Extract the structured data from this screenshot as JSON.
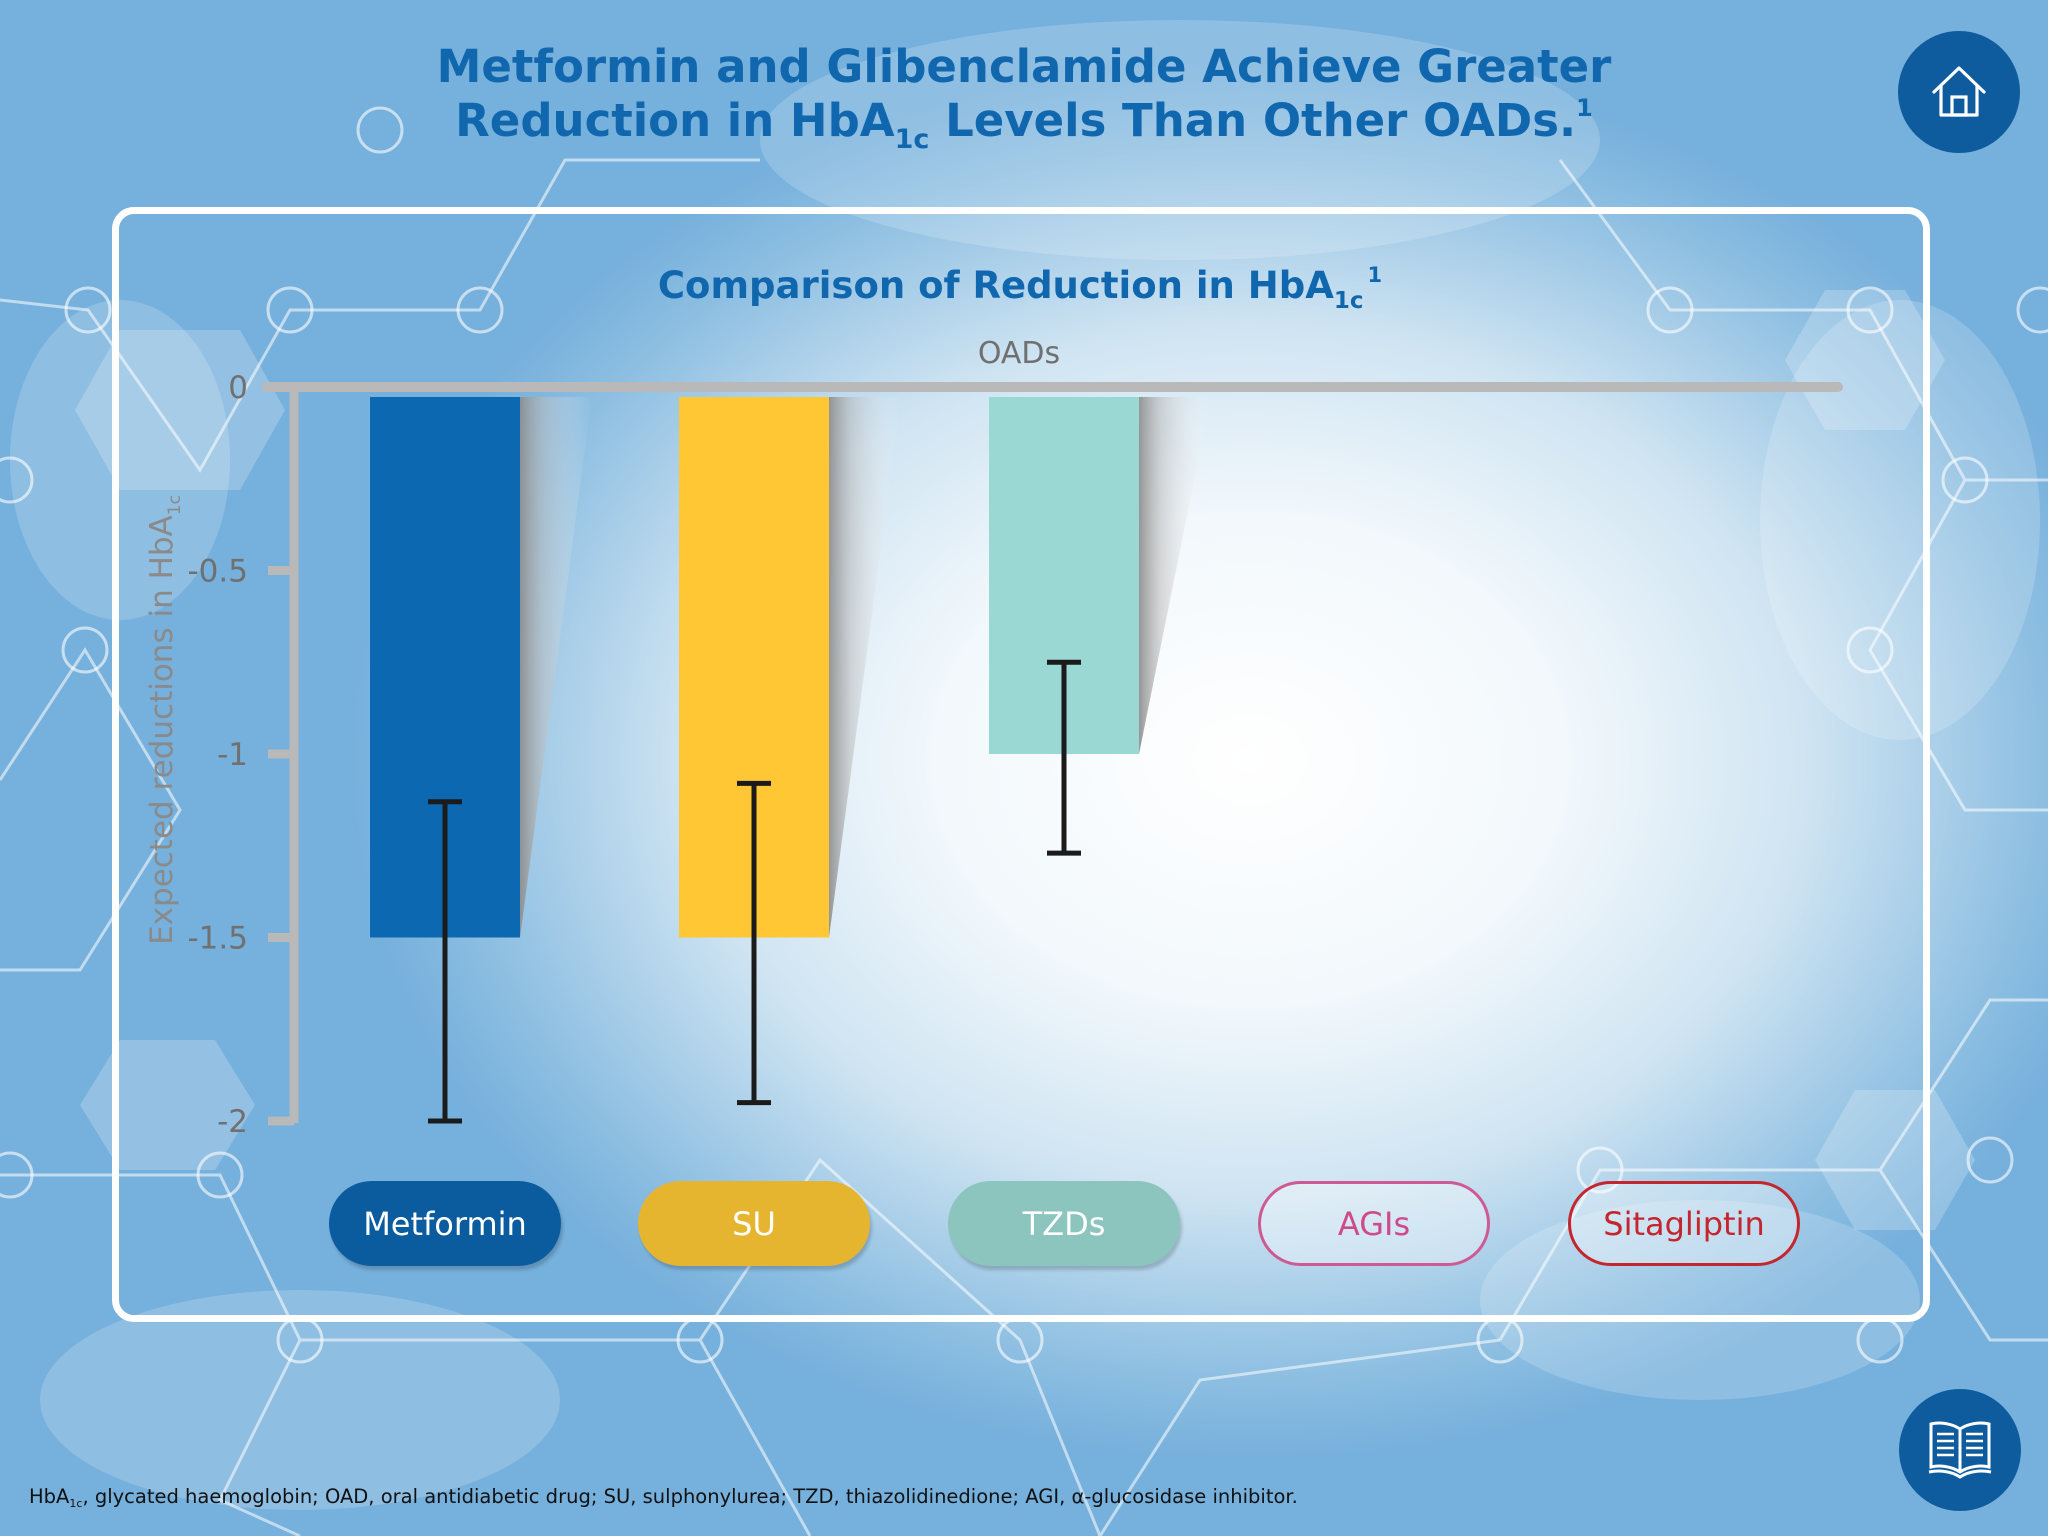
{
  "page": {
    "title_line1": "Metformin and Glibenclamide Achieve Greater",
    "title_line2_a": "Reduction in HbA",
    "title_line2_sub": "1c",
    "title_line2_b": " Levels Than Other OADs.",
    "title_line2_sup": "1"
  },
  "buttons": {
    "home_icon": "home-icon",
    "references_icon": "book-icon"
  },
  "chart_data": {
    "type": "bar",
    "title": "Comparison of Reduction in HbA",
    "title_sub": "1c",
    "title_sup": "1",
    "xlabel": "OADs",
    "ylabel": "Expected reductions in HbA",
    "ylabel_sub": "1c",
    "ylim": [
      -2,
      0
    ],
    "yticks": [
      0,
      -0.5,
      -1,
      -1.5,
      -2
    ],
    "ytick_labels": [
      "0",
      "-0.5",
      "-1",
      "-1.5",
      "-2"
    ],
    "grid": false,
    "categories": [
      "Metformin",
      "SU",
      "TZDs",
      "AGIs",
      "Sitagliptin"
    ],
    "values": [
      -1.5,
      -1.5,
      -1.0,
      null,
      null
    ],
    "error_low": [
      -2.0,
      -1.95,
      -1.27,
      null,
      null
    ],
    "error_high": [
      -1.13,
      -1.08,
      -0.75,
      null,
      null
    ],
    "colors": [
      "#0b68b1",
      "#fec733",
      "#9ad8d3",
      null,
      null
    ],
    "legend": [
      {
        "label": "Metformin",
        "style": "filled",
        "fill": "#0b5c9e",
        "text_color": "#ffffff"
      },
      {
        "label": "SU",
        "style": "filled",
        "fill": "#e5b530",
        "text_color": "#ffffff"
      },
      {
        "label": "TZDs",
        "style": "filled",
        "fill": "#8cc4be",
        "text_color": "#ffffff"
      },
      {
        "label": "AGIs",
        "style": "outline",
        "border": "#cf5a93",
        "text_color": "#cf4a8a"
      },
      {
        "label": "Sitagliptin",
        "style": "outline",
        "border": "#c4262e",
        "text_color": "#c4262e"
      }
    ]
  },
  "footnote": {
    "prefix": "HbA",
    "prefix_sub": "1c",
    "text": ", glycated haemoglobin; OAD, oral antidiabetic drug; SU, sulphonylurea; TZD, thiazolidinedione; AGI, α-glucosidase inhibitor."
  }
}
